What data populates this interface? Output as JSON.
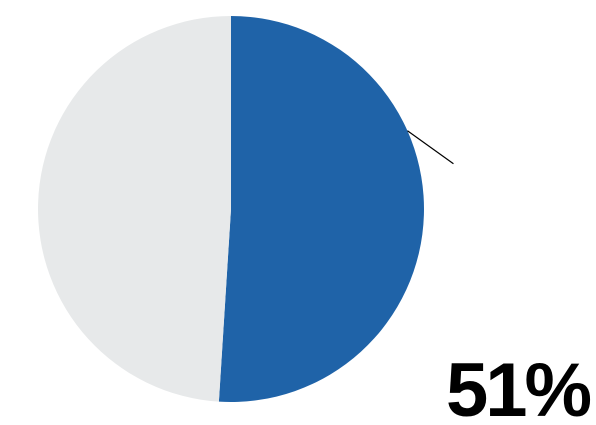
{
  "chart_data": {
    "type": "pie",
    "slices": [
      {
        "value": 51,
        "color": "#1f63a8",
        "label": "51%"
      },
      {
        "value": 49,
        "color": "#e7e9ea"
      }
    ],
    "start_angle_deg": 0,
    "direction": "clockwise",
    "legend": "none",
    "annotation": {
      "text": "51%",
      "slice_index": 0
    }
  }
}
